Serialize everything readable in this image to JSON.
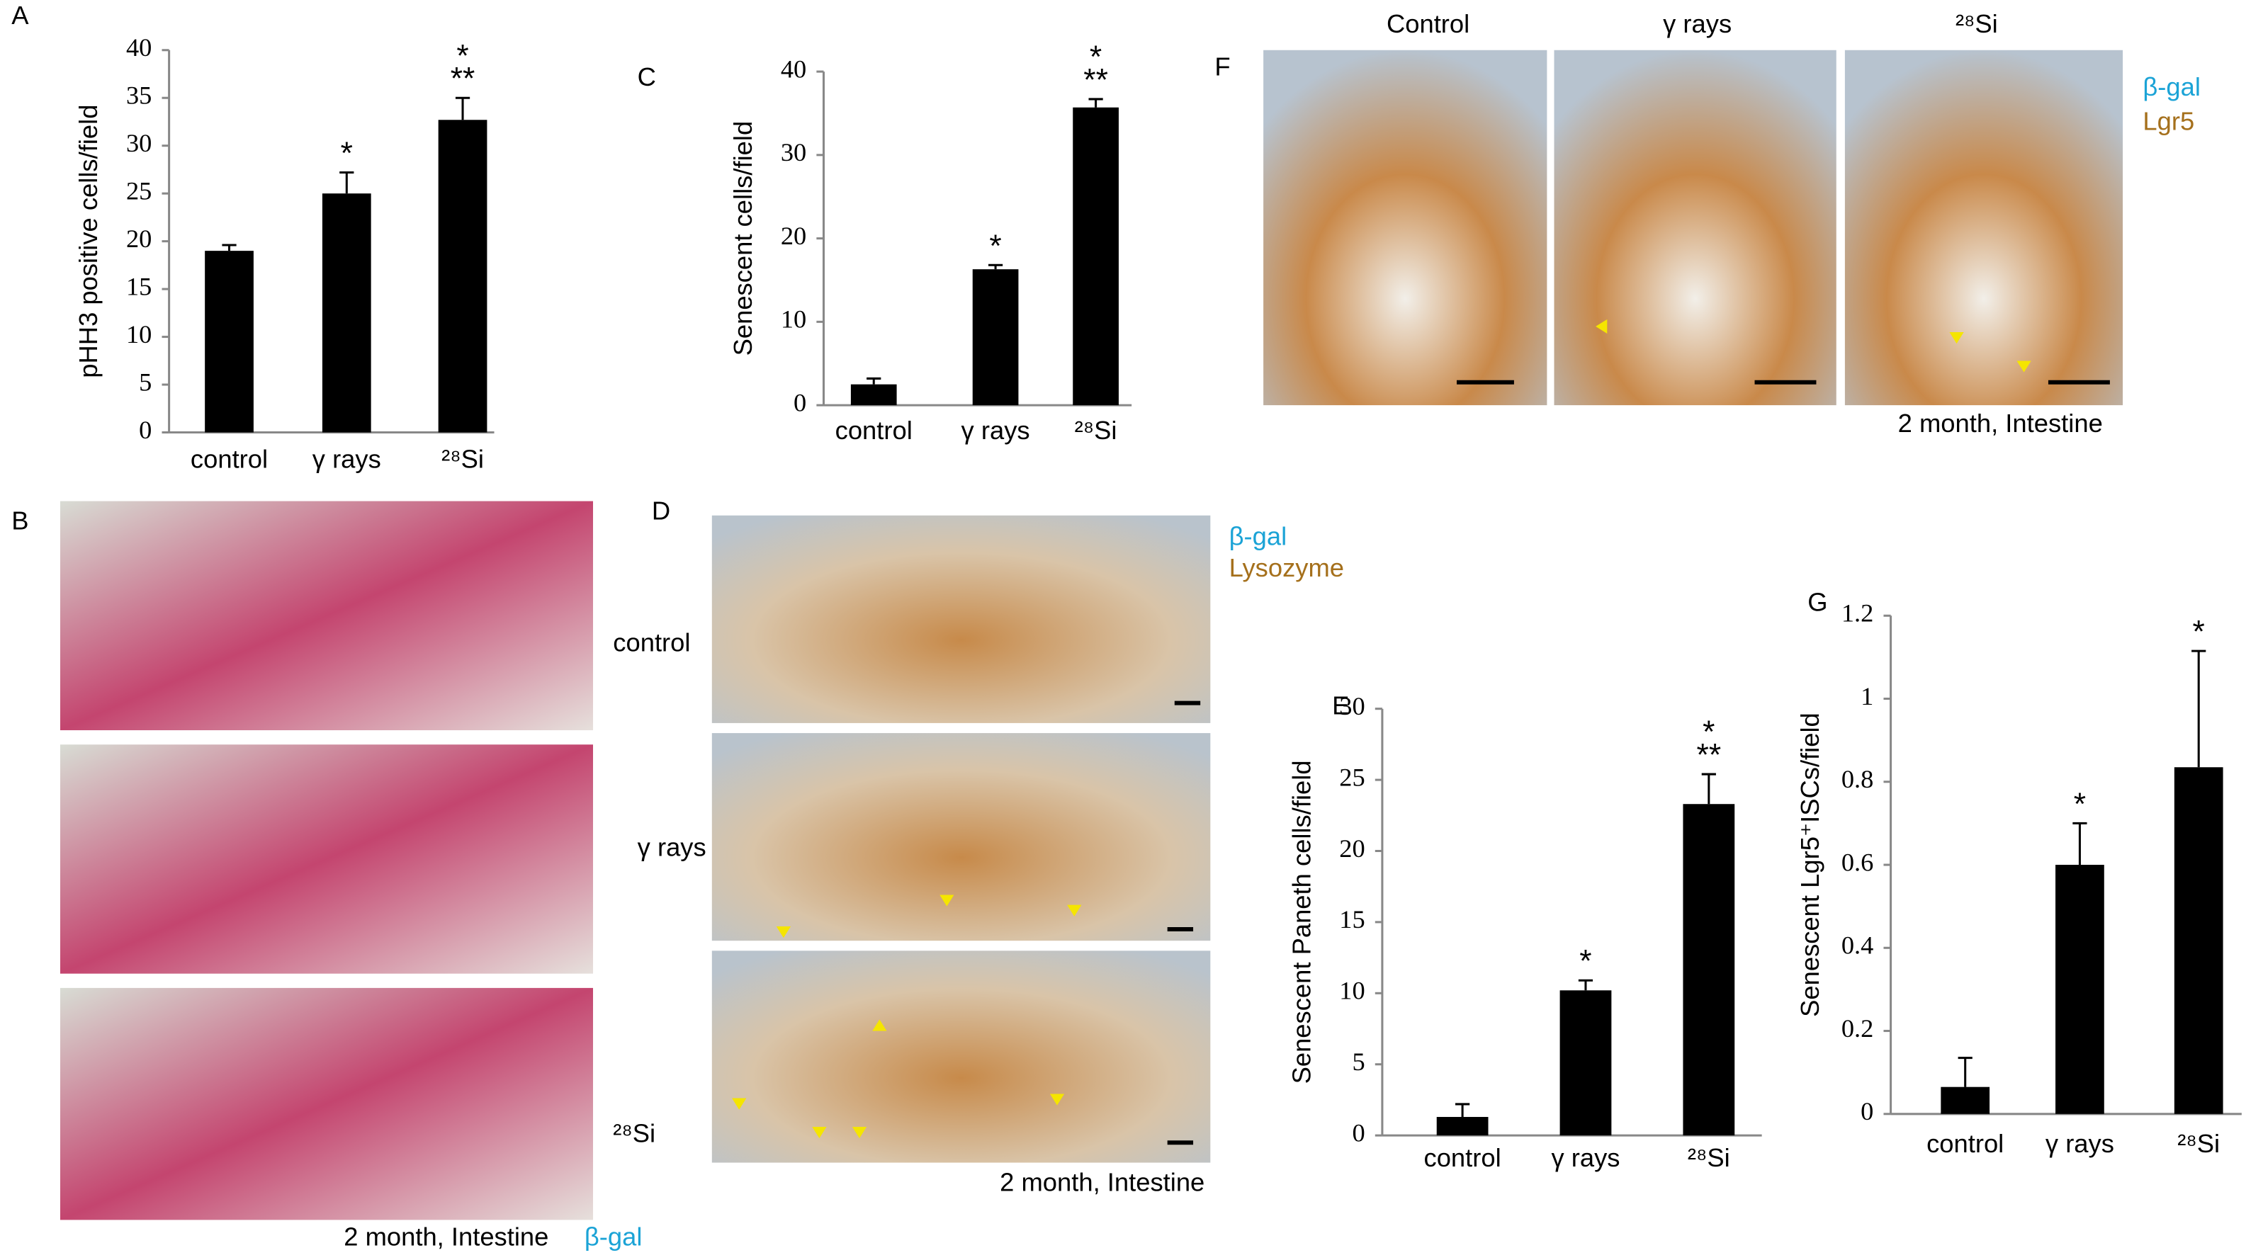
{
  "chart_data": [
    {
      "type": "bar",
      "ylabel": "pHH3 positive cells/field",
      "categories": [
        "control",
        "γ rays",
        "²⁸Si"
      ],
      "values": [
        19,
        25,
        32.7
      ],
      "errors": [
        0.6,
        2.2,
        2.3
      ],
      "significance": [
        null,
        [
          "*"
        ],
        [
          "*",
          "**"
        ]
      ],
      "color": "#000000",
      "ylim": [
        0,
        40
      ],
      "yticks": [
        0,
        5,
        10,
        15,
        20,
        25,
        30,
        35,
        40
      ]
    },
    {
      "type": "bar",
      "ylabel": "Senescent cells/field",
      "categories": [
        "control",
        "γ rays",
        "²⁸Si"
      ],
      "values": [
        2.5,
        16.3,
        35.7
      ],
      "errors": [
        0.7,
        0.5,
        1.0
      ],
      "significance": [
        null,
        [
          "*"
        ],
        [
          "*",
          "**"
        ]
      ],
      "color": "#000000",
      "ylim": [
        0,
        40
      ],
      "yticks": [
        0,
        10,
        20,
        30,
        40
      ]
    },
    {
      "type": "bar",
      "ylabel": "Senescent Paneth cells/field",
      "categories": [
        "control",
        "γ rays",
        "²⁸Si"
      ],
      "values": [
        1.3,
        10.2,
        23.3
      ],
      "errors": [
        0.9,
        0.7,
        2.1
      ],
      "significance": [
        null,
        [
          "*"
        ],
        [
          "*",
          "**"
        ]
      ],
      "color": "#000000",
      "ylim": [
        0,
        30
      ],
      "yticks": [
        0,
        5,
        10,
        15,
        20,
        25,
        30
      ]
    },
    {
      "type": "bar",
      "ylabel": "Senescent Lgr5⁺ISCs/field",
      "categories": [
        "control",
        "γ rays",
        "²⁸Si"
      ],
      "values": [
        0.065,
        0.6,
        0.835
      ],
      "errors": [
        0.07,
        0.1,
        0.28
      ],
      "significance": [
        null,
        [
          "*"
        ],
        [
          "*"
        ]
      ],
      "color": "#000000",
      "ylim": [
        0,
        1.2
      ],
      "yticks": [
        0,
        0.2,
        0.4,
        0.6,
        0.8,
        1,
        1.2
      ]
    }
  ],
  "panel_labels": [
    "A",
    "B",
    "C",
    "D",
    "E",
    "F",
    "G"
  ],
  "panel_b": {
    "caption": "2 month, Intestine",
    "stain": "β-gal"
  },
  "panel_d": {
    "rows": [
      "control",
      "γ rays",
      "²⁸Si"
    ],
    "legend": [
      "β-gal",
      "Lysozyme"
    ],
    "caption": "2 month, Intestine"
  },
  "panel_f": {
    "columns": [
      "Control",
      "γ rays",
      "²⁸Si"
    ],
    "legend": [
      "β-gal",
      "Lgr5"
    ],
    "caption": "2 month, Intestine"
  }
}
